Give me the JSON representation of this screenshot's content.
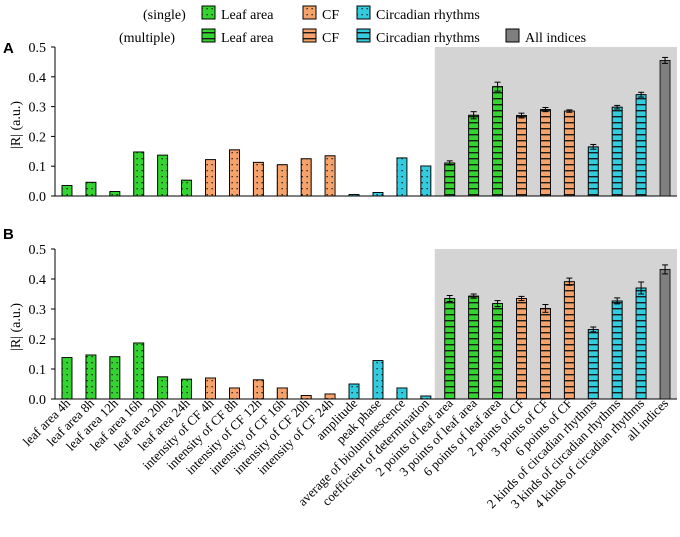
{
  "colors": {
    "leaf": "#33d42f",
    "cf": "#f5a36a",
    "circ": "#33ccdf",
    "all": "#7f7f7f",
    "highlight": "#d4d4d4",
    "dots": "#1a1a1a",
    "stripes": "#1a1a1a"
  },
  "legend": {
    "rows": [
      {
        "label": "(single)",
        "pattern": "dots",
        "items": [
          {
            "label": "Leaf area",
            "color": "leaf"
          },
          {
            "label": "CF",
            "color": "cf"
          },
          {
            "label": "Circadian rhythms",
            "color": "circ"
          }
        ]
      },
      {
        "label": "(multiple)",
        "pattern": "stripes",
        "items": [
          {
            "label": "Leaf area",
            "color": "leaf"
          },
          {
            "label": "CF",
            "color": "cf"
          },
          {
            "label": "Circadian rhythms",
            "color": "circ"
          },
          {
            "label": "All indices",
            "color": "all",
            "pattern": "solid"
          }
        ]
      }
    ]
  },
  "chart_data": [
    {
      "type": "bar",
      "panel": "A",
      "ylabel": "|R| (a.u.)",
      "ylim": [
        0,
        0.5
      ],
      "yticks": [
        "0.0",
        "0.1",
        "0.2",
        "0.3",
        "0.4",
        "0.5"
      ],
      "highlight_from_category": "2 points of leaf area",
      "values": [
        0.035,
        0.046,
        0.015,
        0.148,
        0.137,
        0.053,
        0.122,
        0.155,
        0.113,
        0.105,
        0.125,
        0.135,
        0.005,
        0.012,
        0.128,
        0.101,
        0.111,
        0.271,
        0.367,
        0.27,
        0.29,
        0.285,
        0.165,
        0.298,
        0.34,
        0.455
      ],
      "errors": [
        null,
        null,
        null,
        null,
        null,
        null,
        null,
        null,
        null,
        null,
        null,
        null,
        null,
        null,
        null,
        null,
        0.007,
        0.012,
        0.015,
        0.008,
        0.007,
        0.004,
        0.008,
        0.006,
        0.008,
        0.01
      ]
    },
    {
      "type": "bar",
      "panel": "B",
      "ylabel": "|R| (a.u.)",
      "ylim": [
        0,
        0.5
      ],
      "yticks": [
        "0.0",
        "0.1",
        "0.2",
        "0.3",
        "0.4",
        "0.5"
      ],
      "highlight_from_category": "2 points of leaf area",
      "categories": [
        "leaf area 4h",
        "leaf area 8h",
        "leaf area 12h",
        "leaf area 16h",
        "leaf area 20h",
        "leaf area 24h",
        "intensity of CF 4h",
        "intensity of CF 8h",
        "intensity of CF 12h",
        "intensity of CF 16h",
        "intensity of CF 20h",
        "intensity of CF 24h",
        "amplitude",
        "peak phase",
        "average of bioluminescence",
        "coefficient of determination",
        "2 points of leaf area",
        "3 points of leaf area",
        "6 points of leaf area",
        "2 points of CF",
        "3 points of CF",
        "6 points of CF",
        "2 kinds of circadian rhythms",
        "3 kinds of circadian rhythms",
        "4 kinds of circadian rhythms",
        "all indices"
      ],
      "values": [
        0.138,
        0.147,
        0.141,
        0.187,
        0.074,
        0.066,
        0.07,
        0.037,
        0.064,
        0.037,
        0.012,
        0.017,
        0.05,
        0.128,
        0.037,
        0.01,
        0.335,
        0.343,
        0.318,
        0.335,
        0.302,
        0.391,
        0.232,
        0.327,
        0.37,
        0.432
      ],
      "errors": [
        null,
        null,
        null,
        null,
        null,
        null,
        null,
        null,
        null,
        null,
        null,
        null,
        null,
        null,
        null,
        null,
        0.01,
        0.007,
        0.01,
        0.007,
        0.013,
        0.012,
        0.008,
        0.01,
        0.02,
        0.015
      ]
    }
  ],
  "bar_meta": {
    "groups": [
      "leaf",
      "leaf",
      "leaf",
      "leaf",
      "leaf",
      "leaf",
      "cf",
      "cf",
      "cf",
      "cf",
      "cf",
      "cf",
      "circ",
      "circ",
      "circ",
      "circ",
      "leaf",
      "leaf",
      "leaf",
      "cf",
      "cf",
      "cf",
      "circ",
      "circ",
      "circ",
      "all"
    ],
    "patterns": [
      "dots",
      "dots",
      "dots",
      "dots",
      "dots",
      "dots",
      "dots",
      "dots",
      "dots",
      "dots",
      "dots",
      "dots",
      "dots",
      "dots",
      "dots",
      "dots",
      "stripes",
      "stripes",
      "stripes",
      "stripes",
      "stripes",
      "stripes",
      "stripes",
      "stripes",
      "stripes",
      "solid"
    ]
  }
}
